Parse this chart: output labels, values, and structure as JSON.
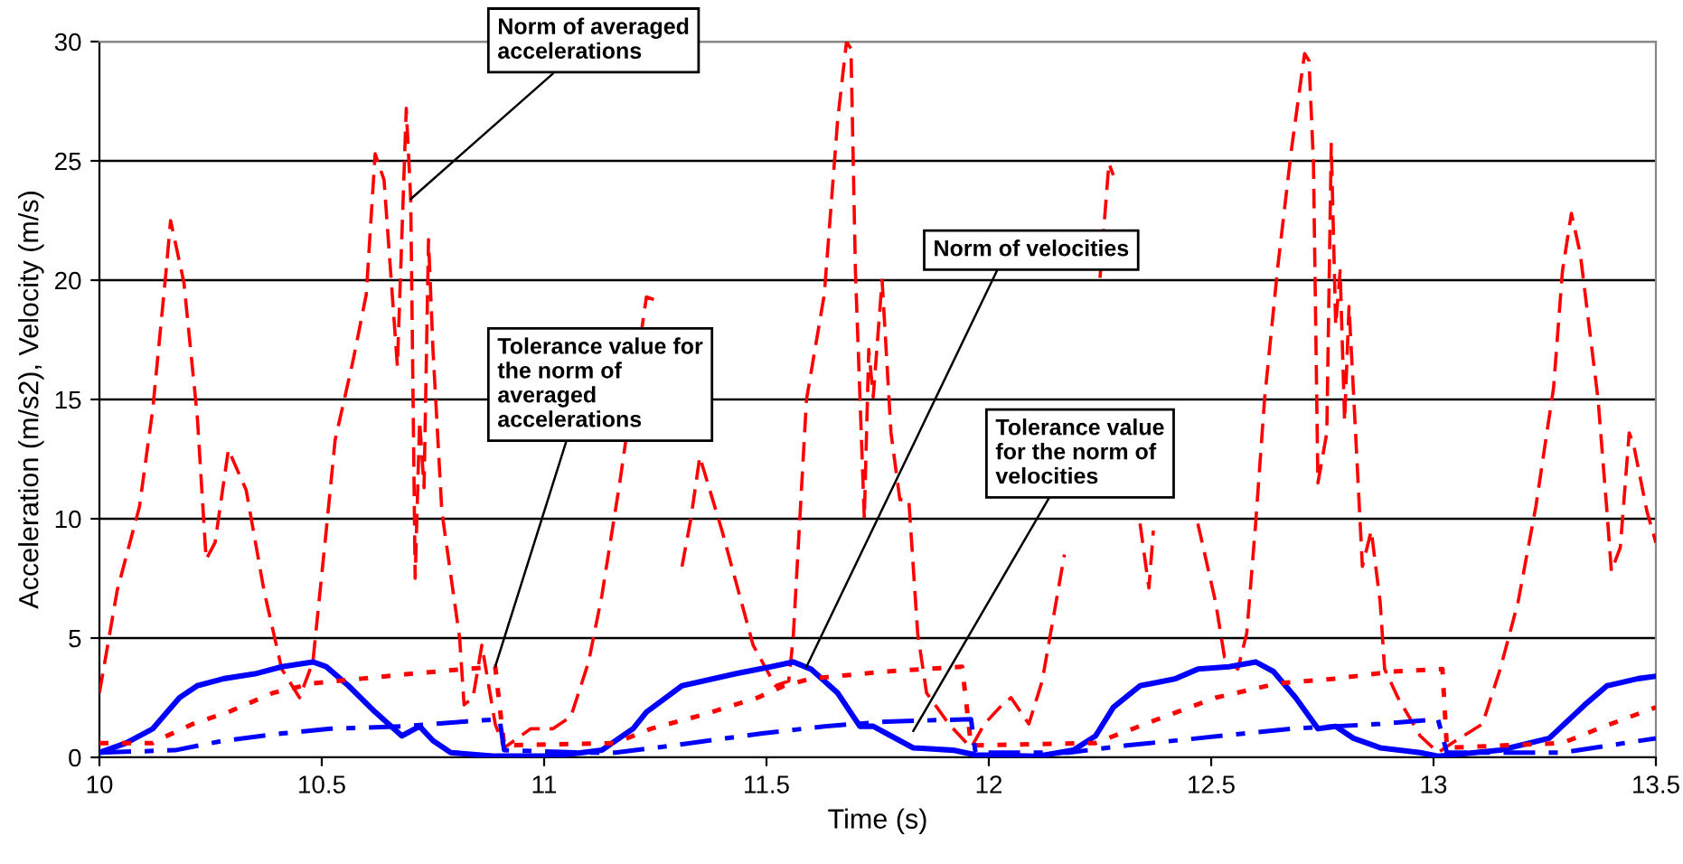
{
  "chart_data": {
    "type": "line",
    "xlabel": "Time (s)",
    "ylabel": "Acceleration (m/s2), Velocity (m/s)",
    "xlim": [
      10,
      13.5
    ],
    "xticks": [
      10,
      10.5,
      11,
      11.5,
      12,
      12.5,
      13,
      13.5
    ],
    "ylim": [
      0,
      30
    ],
    "yticks": [
      0,
      5,
      10,
      15,
      20,
      25,
      30
    ],
    "grid": "y",
    "legend": false,
    "marker": "none",
    "series": [
      {
        "color": "#ff0000",
        "line_style": "dashed",
        "x": [
          10,
          10.04,
          10.09,
          10.12,
          10.15,
          10.16,
          10.19,
          10.22,
          10.24,
          10.26,
          10.29,
          10.33,
          10.37,
          10.41,
          10.45,
          10.48,
          10.51,
          10.53,
          10.57,
          10.6,
          10.62,
          10.64,
          10.67,
          10.69,
          10.7,
          10.71,
          10.72,
          10.73,
          10.74,
          10.75,
          10.77,
          10.81,
          10.82,
          10.84,
          10.86,
          10.89,
          10.91,
          10.97,
          11.02,
          11.06,
          11.1,
          11.13,
          11.17,
          11.23,
          11.26,
          11.28,
          11.31,
          11.33,
          11.35,
          11.4,
          11.47,
          11.52,
          11.55,
          11.56,
          11.59,
          11.63,
          11.66,
          11.68,
          11.69,
          11.7,
          11.72,
          11.73,
          11.74,
          11.76,
          11.78,
          11.8,
          11.82,
          11.84,
          11.86,
          11.91,
          11.96,
          11.99,
          12.03,
          12.05,
          12.09,
          12.12,
          12.17,
          12.22,
          12.25,
          12.27,
          12.28,
          12.3,
          12.33,
          12.34,
          12.36,
          12.37,
          12.42,
          12.47,
          12.51,
          12.53,
          12.56,
          12.58,
          12.6,
          12.62,
          12.65,
          12.68,
          12.71,
          12.72,
          12.73,
          12.74,
          12.76,
          12.77,
          12.78,
          12.79,
          12.8,
          12.81,
          12.82,
          12.84,
          12.86,
          12.88,
          12.89,
          12.92,
          12.97,
          13.01,
          13.05,
          13.11,
          13.15,
          13.19,
          13.23,
          13.27,
          13.29,
          13.31,
          13.33,
          13.37,
          13.39,
          13.4,
          13.42,
          13.44,
          13.45,
          13.48,
          13.5
        ],
        "values": [
          2.7,
          7.0,
          10.5,
          14.6,
          20.4,
          22.5,
          19.9,
          14.3,
          8.3,
          9.0,
          12.9,
          11.2,
          7.0,
          3.7,
          2.5,
          4.0,
          9.5,
          13.3,
          16.6,
          19.4,
          25.3,
          24.2,
          16.4,
          27.2,
          23.4,
          7.5,
          14.1,
          11.3,
          21.7,
          17.1,
          10.3,
          5.0,
          2.2,
          2.5,
          4.7,
          1.4,
          0.4,
          1.2,
          1.2,
          1.7,
          4.0,
          6.8,
          11.5,
          19.3,
          19.1,
          null,
          8.0,
          10.0,
          12.6,
          9.5,
          4.7,
          3.0,
          3.2,
          5.0,
          15.0,
          19.4,
          26.7,
          30.0,
          29.7,
          20.4,
          10.0,
          17.1,
          15.1,
          20.0,
          13.6,
          10.8,
          10.8,
          5.2,
          2.7,
          1.4,
          0.4,
          1.4,
          2.2,
          2.5,
          1.4,
          3.2,
          8.5,
          null,
          20.1,
          24.9,
          24.4,
          null,
          null,
          9.8,
          7.1,
          9.5,
          null,
          9.8,
          6.5,
          4.2,
          3.7,
          5.2,
          9.8,
          15.0,
          20.6,
          25.4,
          29.5,
          29.2,
          24.9,
          11.5,
          13.6,
          25.7,
          18.1,
          20.4,
          14.1,
          18.9,
          15.3,
          8.0,
          9.5,
          6.5,
          3.7,
          2.5,
          0.9,
          0.2,
          0.7,
          1.4,
          3.7,
          6.5,
          10.5,
          15.5,
          20.4,
          22.8,
          21.1,
          15.0,
          10.3,
          7.8,
          8.8,
          13.6,
          13.1,
          10.3,
          9.0
        ]
      },
      {
        "color": "#0000ff",
        "line_style": "solid",
        "x": [
          10,
          10.06,
          10.12,
          10.18,
          10.22,
          10.28,
          10.35,
          10.41,
          10.48,
          10.51,
          10.56,
          10.62,
          10.68,
          10.72,
          10.75,
          10.79,
          10.89,
          11.02,
          11.13,
          11.2,
          11.23,
          11.31,
          11.43,
          11.51,
          11.56,
          11.6,
          11.66,
          11.71,
          11.74,
          11.78,
          11.83,
          11.92,
          11.97,
          12.11,
          12.19,
          12.24,
          12.28,
          12.34,
          12.42,
          12.47,
          12.54,
          12.6,
          12.64,
          12.69,
          12.74,
          12.78,
          12.82,
          12.88,
          12.97,
          13.01,
          13.15,
          13.26,
          13.34,
          13.39,
          13.46,
          13.5
        ],
        "values": [
          0.2,
          0.6,
          1.2,
          2.5,
          3.0,
          3.3,
          3.5,
          3.8,
          4.0,
          3.8,
          3.0,
          1.9,
          0.9,
          1.3,
          0.7,
          0.2,
          0.05,
          0.05,
          0.3,
          1.2,
          1.9,
          3.0,
          3.5,
          3.8,
          4.0,
          3.7,
          2.7,
          1.3,
          1.3,
          0.9,
          0.4,
          0.3,
          0.1,
          0.05,
          0.3,
          0.9,
          2.1,
          3.0,
          3.3,
          3.7,
          3.8,
          4.0,
          3.6,
          2.5,
          1.2,
          1.3,
          0.8,
          0.4,
          0.2,
          0.05,
          0.3,
          0.8,
          2.2,
          3.0,
          3.3,
          3.4
        ]
      },
      {
        "color": "#ff0000",
        "line_style": "dotted",
        "x": [
          10,
          10.12,
          10.14,
          10.21,
          10.29,
          10.39,
          10.48,
          10.59,
          10.7,
          10.82,
          10.89,
          10.91,
          11.16,
          11.24,
          11.36,
          11.48,
          11.54,
          11.6,
          11.77,
          11.94,
          11.96,
          12.24,
          12.38,
          12.51,
          12.65,
          12.78,
          12.91,
          13.02,
          13.03,
          13.29,
          13.37,
          13.5
        ],
        "values": [
          0.6,
          0.6,
          0.8,
          1.4,
          1.9,
          2.7,
          3.1,
          3.3,
          3.5,
          3.7,
          3.8,
          0.5,
          0.6,
          1.2,
          1.8,
          2.5,
          3.0,
          3.3,
          3.6,
          3.8,
          0.5,
          0.6,
          1.6,
          2.5,
          3.1,
          3.3,
          3.6,
          3.7,
          0.4,
          0.6,
          1.2,
          2.1
        ]
      },
      {
        "color": "#0000ff",
        "line_style": "dashdot",
        "x": [
          10,
          10.17,
          10.28,
          10.41,
          10.52,
          10.68,
          10.82,
          10.9,
          10.91,
          11.09,
          11.16,
          11.29,
          11.49,
          11.63,
          11.77,
          11.96,
          11.97,
          12.18,
          12.31,
          12.47,
          12.68,
          12.88,
          13.01,
          13.03,
          13.29,
          13.5
        ],
        "values": [
          0.2,
          0.3,
          0.7,
          1.0,
          1.2,
          1.3,
          1.5,
          1.6,
          0.3,
          0.2,
          0.2,
          0.5,
          1.0,
          1.3,
          1.5,
          1.6,
          0.2,
          0.2,
          0.5,
          0.8,
          1.2,
          1.4,
          1.6,
          0.2,
          0.2,
          0.8
        ]
      }
    ],
    "annotations": [
      {
        "text": "Norm of averaged\naccelerations",
        "x": 10.7,
        "y": 23.4
      },
      {
        "text": "Tolerance value for\nthe norm of\naveraged\naccelerations",
        "x": 10.89,
        "y": 3.8
      },
      {
        "text": "Norm of velocities",
        "x": 11.59,
        "y": 3.8
      },
      {
        "text": "Tolerance value\nfor the norm of\nvelocities",
        "x": 11.83,
        "y": 1.1
      }
    ]
  }
}
